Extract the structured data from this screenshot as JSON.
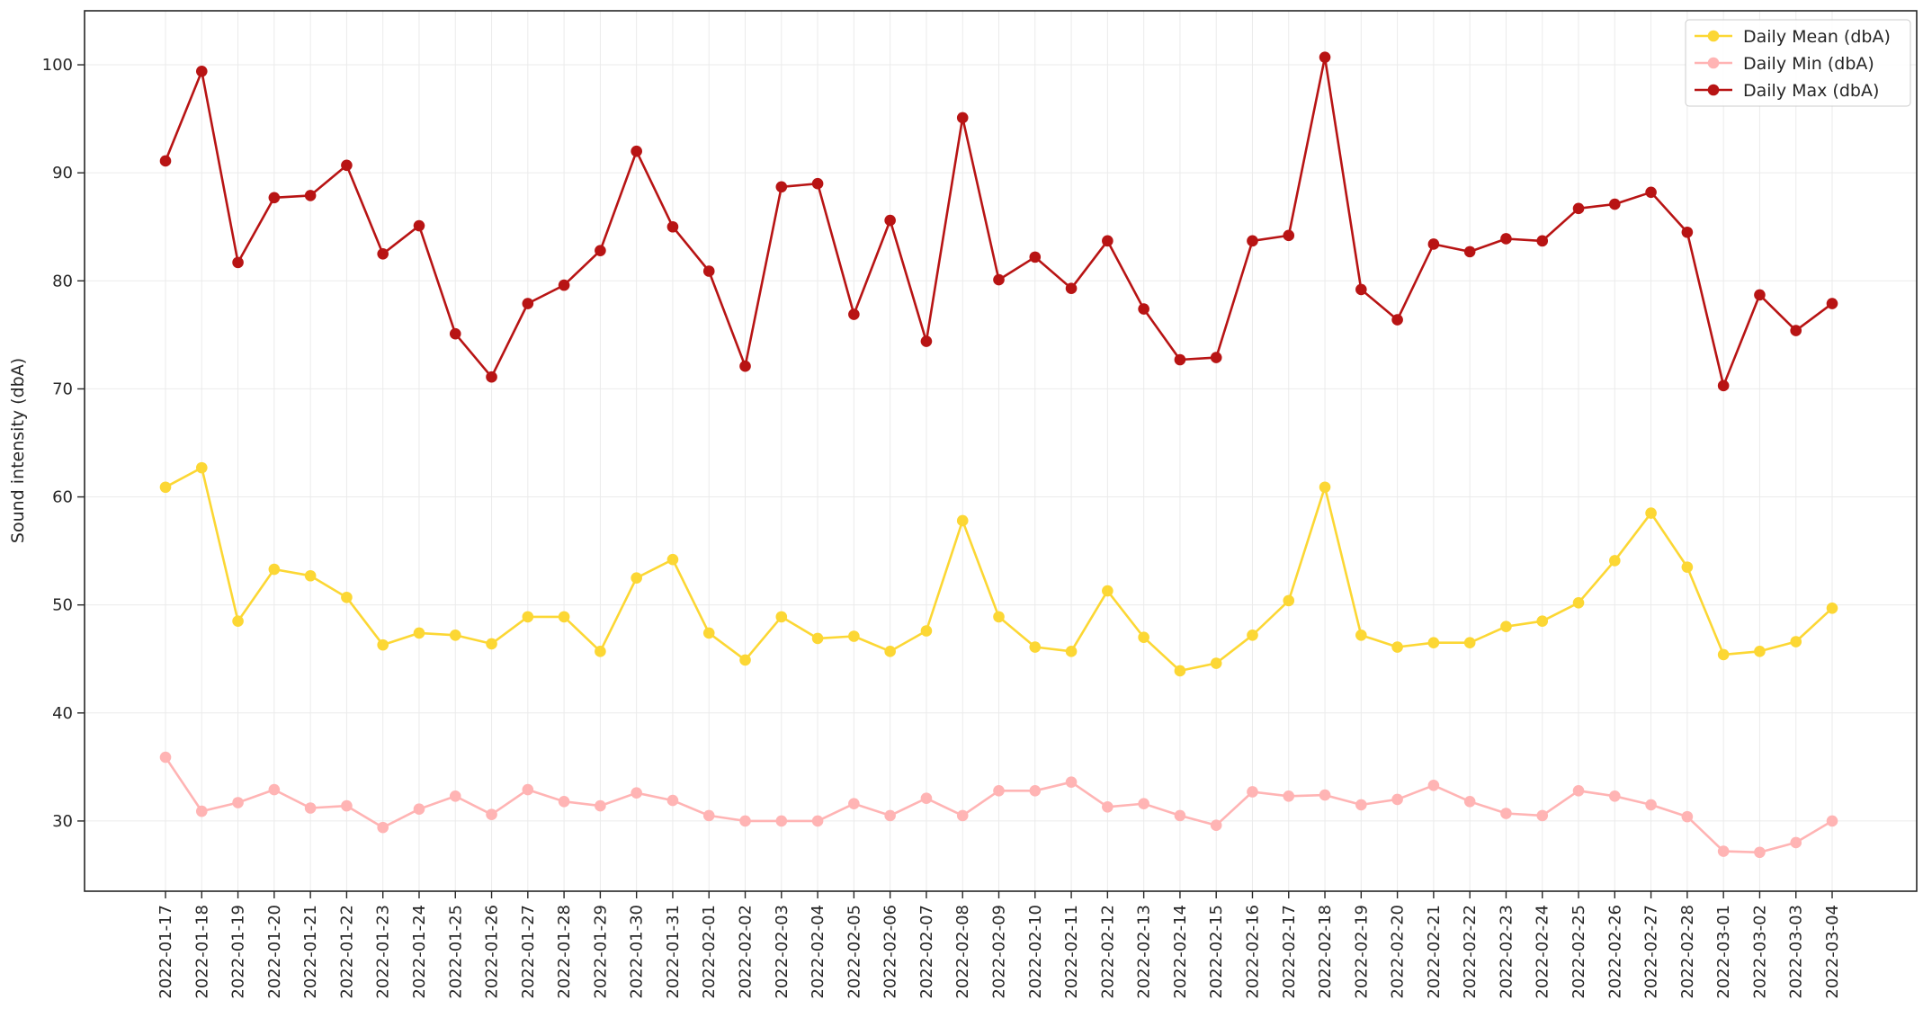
{
  "chart_data": {
    "type": "line",
    "ylabel": "Sound intensity (dbA)",
    "xlabel": "",
    "ylim": [
      23.5,
      105.0
    ],
    "yticks": [
      30,
      40,
      50,
      60,
      70,
      80,
      90,
      100
    ],
    "grid": true,
    "legend_position": "top-right",
    "x": [
      "2022-01-17",
      "2022-01-18",
      "2022-01-19",
      "2022-01-20",
      "2022-01-21",
      "2022-01-22",
      "2022-01-23",
      "2022-01-24",
      "2022-01-25",
      "2022-01-26",
      "2022-01-27",
      "2022-01-28",
      "2022-01-29",
      "2022-01-30",
      "2022-01-31",
      "2022-02-01",
      "2022-02-02",
      "2022-02-03",
      "2022-02-04",
      "2022-02-05",
      "2022-02-06",
      "2022-02-07",
      "2022-02-08",
      "2022-02-09",
      "2022-02-10",
      "2022-02-11",
      "2022-02-12",
      "2022-02-13",
      "2022-02-14",
      "2022-02-15",
      "2022-02-16",
      "2022-02-17",
      "2022-02-18",
      "2022-02-19",
      "2022-02-20",
      "2022-02-21",
      "2022-02-22",
      "2022-02-23",
      "2022-02-24",
      "2022-02-25",
      "2022-02-26",
      "2022-02-27",
      "2022-02-28",
      "2022-03-01",
      "2022-03-02",
      "2022-03-03",
      "2022-03-04"
    ],
    "series": [
      {
        "name": "Daily Mean (dbA)",
        "color": "#FCD734",
        "values": [
          60.9,
          62.7,
          48.5,
          53.3,
          52.7,
          50.7,
          46.3,
          47.4,
          47.2,
          46.4,
          48.9,
          48.9,
          45.7,
          52.5,
          54.2,
          47.4,
          44.9,
          48.9,
          46.9,
          47.1,
          45.7,
          47.6,
          57.8,
          48.9,
          46.1,
          45.7,
          51.3,
          47.0,
          43.9,
          44.6,
          47.2,
          50.4,
          60.9,
          47.2,
          46.1,
          46.5,
          46.5,
          48.0,
          48.5,
          50.2,
          54.1,
          58.5,
          53.5,
          45.4,
          45.7,
          46.6,
          49.7
        ]
      },
      {
        "name": "Daily Min (dbA)",
        "color": "#FFB4B4",
        "values": [
          35.9,
          30.9,
          31.7,
          32.9,
          31.2,
          31.4,
          29.4,
          31.1,
          32.3,
          30.6,
          32.9,
          31.8,
          31.4,
          32.6,
          31.9,
          30.5,
          30.0,
          30.0,
          30.0,
          31.6,
          30.5,
          32.1,
          30.5,
          32.8,
          32.8,
          33.6,
          31.3,
          31.6,
          30.5,
          29.6,
          32.7,
          32.3,
          32.4,
          31.5,
          32.0,
          33.3,
          31.8,
          30.7,
          30.5,
          32.8,
          32.3,
          31.5,
          30.4,
          27.2,
          27.1,
          28.0,
          30.0
        ]
      },
      {
        "name": "Daily Max (dbA)",
        "color": "#B81414",
        "values": [
          91.1,
          99.4,
          81.7,
          87.7,
          87.9,
          90.7,
          82.5,
          85.1,
          75.1,
          71.1,
          77.9,
          79.6,
          82.8,
          92.0,
          85.0,
          80.9,
          72.1,
          88.7,
          89.0,
          76.9,
          85.6,
          74.4,
          95.1,
          80.1,
          82.2,
          79.3,
          83.7,
          77.4,
          72.7,
          72.9,
          83.7,
          84.2,
          100.7,
          79.2,
          76.4,
          83.4,
          82.7,
          83.9,
          83.7,
          86.7,
          87.1,
          88.2,
          84.5,
          70.3,
          78.7,
          75.4,
          77.9
        ]
      }
    ]
  }
}
